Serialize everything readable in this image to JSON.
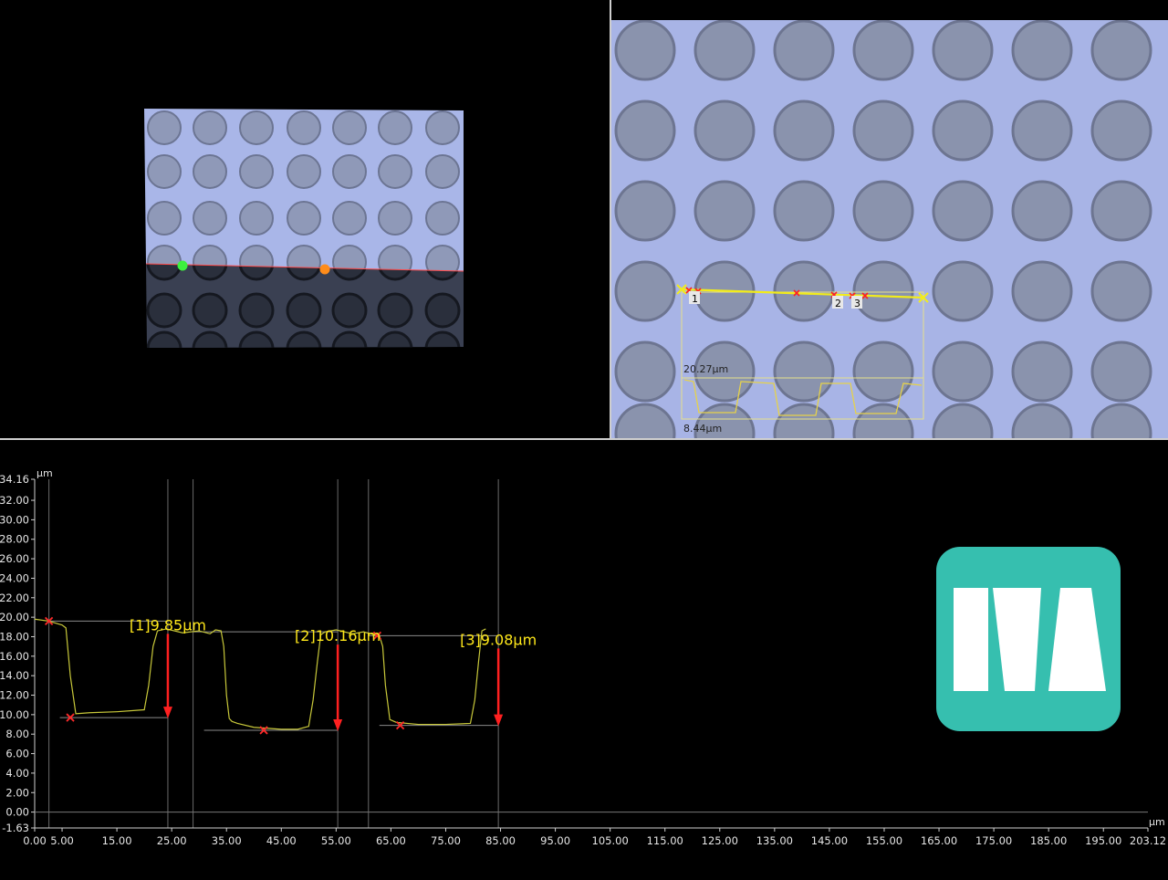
{
  "views": {
    "micro": {
      "profile_max_label": "20.27μm",
      "profile_min_label": "8.44μm",
      "markers": [
        "1",
        "2",
        "3"
      ]
    },
    "threed": {
      "icons": [
        "green-point-icon",
        "orange-point-icon"
      ]
    }
  },
  "chart_data": {
    "type": "line",
    "title": "",
    "xlabel": "μm",
    "ylabel": "μm",
    "xlim": [
      0,
      203.12
    ],
    "ylim": [
      -1.63,
      34.16
    ],
    "x_ticks": [
      "0.00",
      "5.00",
      "15.00",
      "25.00",
      "35.00",
      "45.00",
      "55.00",
      "65.00",
      "75.00",
      "85.00",
      "95.00",
      "105.00",
      "115.00",
      "125.00",
      "135.00",
      "145.00",
      "155.00",
      "165.00",
      "175.00",
      "185.00",
      "195.00",
      "203.12"
    ],
    "x_tick_values": [
      0,
      5,
      15,
      25,
      35,
      45,
      55,
      65,
      75,
      85,
      95,
      105,
      115,
      125,
      135,
      145,
      155,
      165,
      175,
      185,
      195,
      203.12
    ],
    "y_ticks": [
      "34.16",
      "32.00",
      "30.00",
      "28.00",
      "26.00",
      "24.00",
      "22.00",
      "20.00",
      "18.00",
      "16.00",
      "14.00",
      "12.00",
      "10.00",
      "8.00",
      "6.00",
      "4.00",
      "2.00",
      "0.00",
      "-1.63"
    ],
    "y_tick_values": [
      34.16,
      32,
      30,
      28,
      26,
      24,
      22,
      20,
      18,
      16,
      14,
      12,
      10,
      8,
      6,
      4,
      2,
      0,
      -1.63
    ],
    "grid": true,
    "series": [
      {
        "color": "#c8c83a",
        "x": [
          0,
          2.6,
          5,
          5.7,
          6.5,
          7.5,
          10,
          15,
          20,
          20.8,
          21.6,
          22.4,
          24,
          27,
          30,
          32,
          33,
          34,
          34.5,
          35,
          35.5,
          36,
          37,
          40,
          45,
          48,
          50,
          50.8,
          51.6,
          52.2,
          53,
          55,
          58,
          60,
          62,
          62.8,
          63.5,
          64,
          64.8,
          66,
          70,
          75,
          79.5,
          80.3,
          81,
          81.6,
          82.3
        ],
        "y": [
          19.8,
          19.6,
          19.2,
          18.9,
          14,
          10.1,
          10.2,
          10.3,
          10.5,
          13,
          17,
          18.6,
          18.8,
          18.4,
          18.6,
          18.3,
          18.7,
          18.6,
          17,
          12,
          9.6,
          9.3,
          9.1,
          8.7,
          8.5,
          8.5,
          8.8,
          11.5,
          15.5,
          18.2,
          18.5,
          18.7,
          18.3,
          18.5,
          18.2,
          18.3,
          17,
          13,
          9.5,
          9.2,
          9.0,
          9.0,
          9.1,
          11.5,
          15.5,
          18.6,
          18.8
        ]
      }
    ],
    "reference_lines_x": [
      2.6,
      24.3,
      28.9,
      55.3,
      60.9,
      84.6
    ],
    "points": [
      {
        "x": 2.6,
        "y": 19.6
      },
      {
        "x": 6.5,
        "y": 9.7
      },
      {
        "x": 41.8,
        "y": 8.4
      },
      {
        "x": 62.5,
        "y": 18.1
      },
      {
        "x": 66.7,
        "y": 8.9
      }
    ],
    "annotations": [
      {
        "label": "[1]9.85μm",
        "x": 24.3,
        "top": 19.6,
        "bottom": 9.7
      },
      {
        "label": "[2]10.16μm",
        "x": 55.3,
        "top": 18.5,
        "bottom": 8.4
      },
      {
        "label": "[3]9.08μm",
        "x": 84.6,
        "top": 18.1,
        "bottom": 8.9
      }
    ]
  }
}
